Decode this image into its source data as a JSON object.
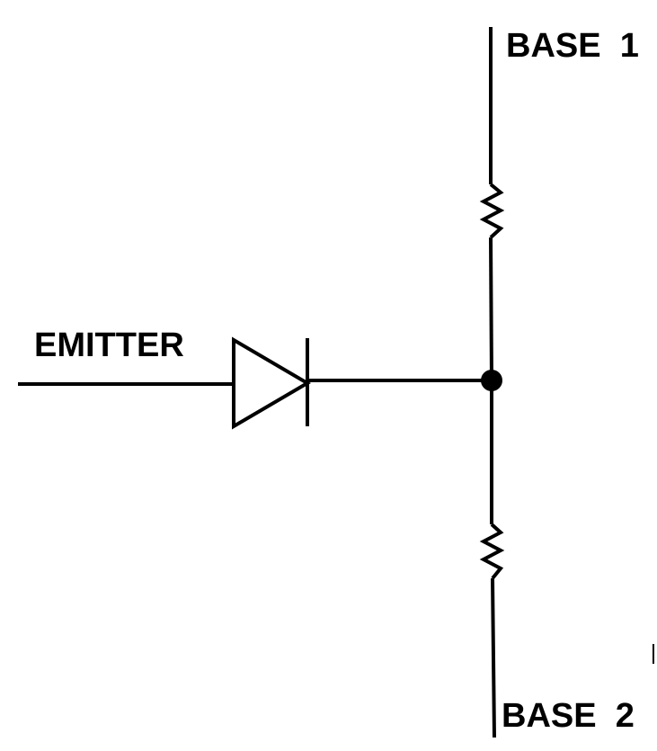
{
  "diagram": {
    "labels": {
      "base1": "BASE  1",
      "base2": "BASE  2",
      "emitter": "EMITTER"
    },
    "colors": {
      "line": "#000000",
      "background": "#ffffff"
    }
  }
}
